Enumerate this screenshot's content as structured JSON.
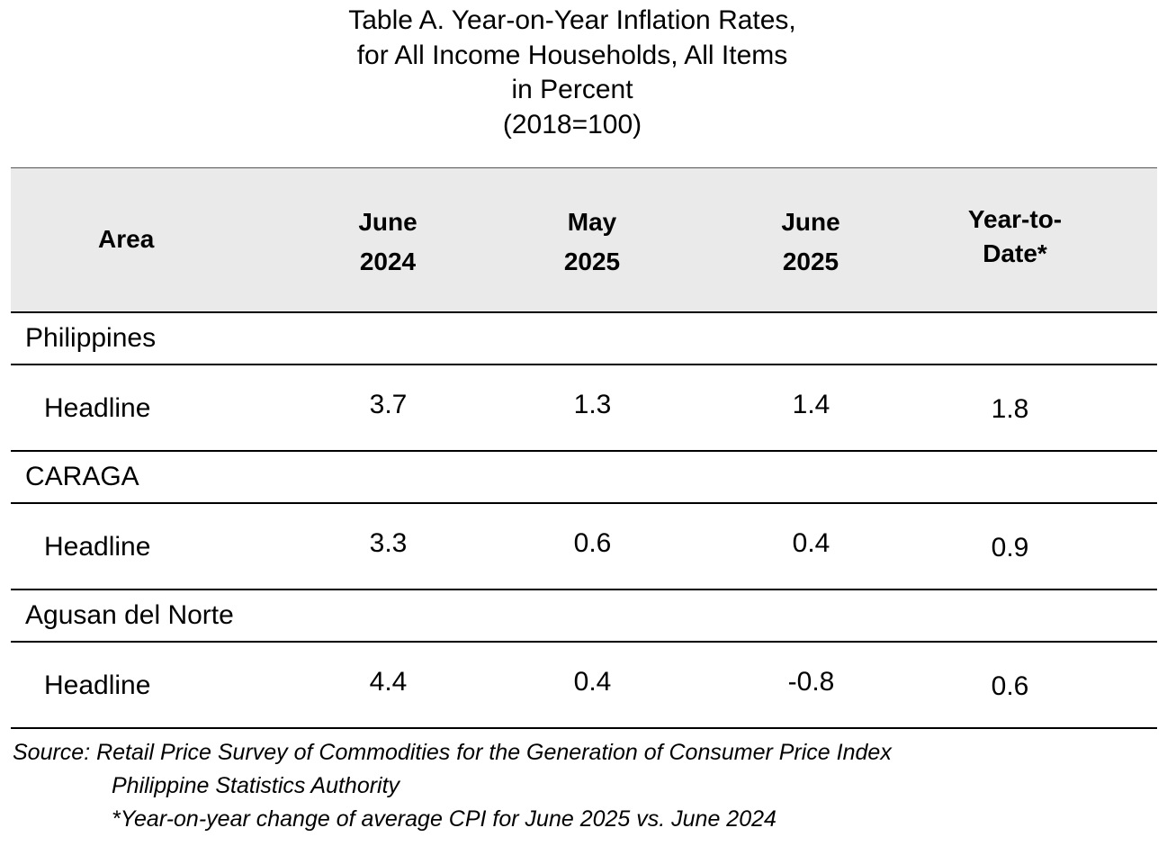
{
  "title": {
    "line1": "Table A. Year-on-Year Inflation Rates,",
    "line2": "for All Income Households, All Items",
    "line3": "in Percent",
    "line4": "(2018=100)"
  },
  "table": {
    "headers": {
      "area": "Area",
      "col1_line1": "June",
      "col1_line2": "2024",
      "col2_line1": "May",
      "col2_line2": "2025",
      "col3_line1": "June",
      "col3_line2": "2025",
      "col4_line1": "Year-to-",
      "col4_line2": "Date*"
    },
    "sections": [
      {
        "region": "Philippines",
        "label": "Headline",
        "values": [
          "3.7",
          "1.3",
          "1.4",
          "1.8"
        ]
      },
      {
        "region": "CARAGA",
        "label": "Headline",
        "values": [
          "3.3",
          "0.6",
          "0.4",
          "0.9"
        ]
      },
      {
        "region": "Agusan del Norte",
        "label": "Headline",
        "values": [
          "4.4",
          "0.4",
          "-0.8",
          "0.6"
        ]
      }
    ]
  },
  "notes": {
    "source": "Source: Retail Price Survey of Commodities for the Generation of Consumer Price Index",
    "agency": "Philippine Statistics Authority",
    "footnote": "*Year-on-year change of average CPI for June 2025 vs. June 2024"
  }
}
